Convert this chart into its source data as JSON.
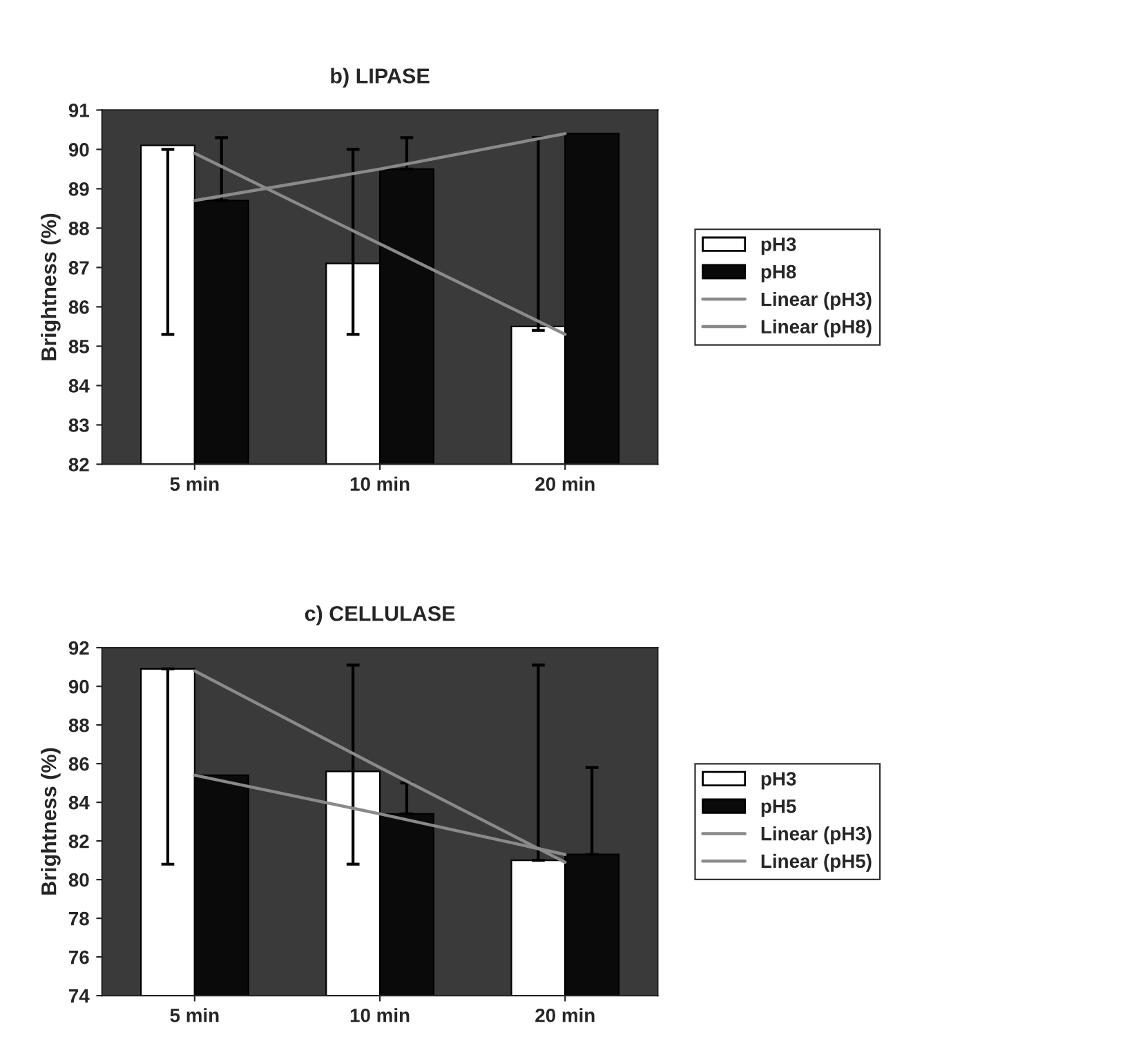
{
  "chart_data": [
    {
      "type": "bar",
      "title": "b) LIPASE",
      "ylabel": "Brightness (%)",
      "categories": [
        "5 min",
        "10 min",
        "20 min"
      ],
      "ylim": [
        82,
        91
      ],
      "yticks": [
        82,
        83,
        84,
        85,
        86,
        87,
        88,
        89,
        90,
        91
      ],
      "legend": "right",
      "grid": false,
      "series": [
        {
          "name": "pH3",
          "color": "#ffffff",
          "values": [
            90.1,
            87.1,
            85.5
          ],
          "errors": [
            [
              85.3,
              90.0
            ],
            [
              85.3,
              90.0
            ],
            [
              85.4,
              90.3
            ]
          ]
        },
        {
          "name": "pH8",
          "color": "#0a0a0a",
          "values": [
            88.7,
            89.5,
            90.4
          ],
          "errors": [
            [
              88.7,
              90.3
            ],
            [
              89.5,
              90.3
            ],
            null
          ]
        },
        {
          "name": "Linear (pH3)",
          "type": "line",
          "color": "#8a8a8a",
          "values": [
            89.9,
            87.6,
            85.3
          ]
        },
        {
          "name": "Linear (pH8)",
          "type": "line",
          "color": "#8a8a8a",
          "values": [
            88.7,
            89.5,
            90.4
          ]
        }
      ]
    },
    {
      "type": "bar",
      "title": "c) CELLULASE",
      "ylabel": "Brightness (%)",
      "categories": [
        "5 min",
        "10 min",
        "20 min"
      ],
      "ylim": [
        74,
        92
      ],
      "yticks": [
        74,
        76,
        78,
        80,
        82,
        84,
        86,
        88,
        90,
        92
      ],
      "legend": "right",
      "grid": false,
      "series": [
        {
          "name": "pH3",
          "color": "#ffffff",
          "values": [
            90.9,
            85.6,
            81.0
          ],
          "errors": [
            [
              80.8,
              90.9
            ],
            [
              80.8,
              91.1
            ],
            [
              81.0,
              91.1
            ]
          ]
        },
        {
          "name": "pH5",
          "color": "#0a0a0a",
          "values": [
            85.4,
            83.4,
            81.3
          ],
          "errors": [
            null,
            [
              83.4,
              85.0
            ],
            [
              81.3,
              85.8
            ]
          ]
        },
        {
          "name": "Linear (pH3)",
          "type": "line",
          "color": "#8a8a8a",
          "values": [
            90.8,
            85.8,
            80.9
          ]
        },
        {
          "name": "Linear (pH5)",
          "type": "line",
          "color": "#8a8a8a",
          "values": [
            85.4,
            83.4,
            81.3
          ]
        }
      ]
    }
  ]
}
